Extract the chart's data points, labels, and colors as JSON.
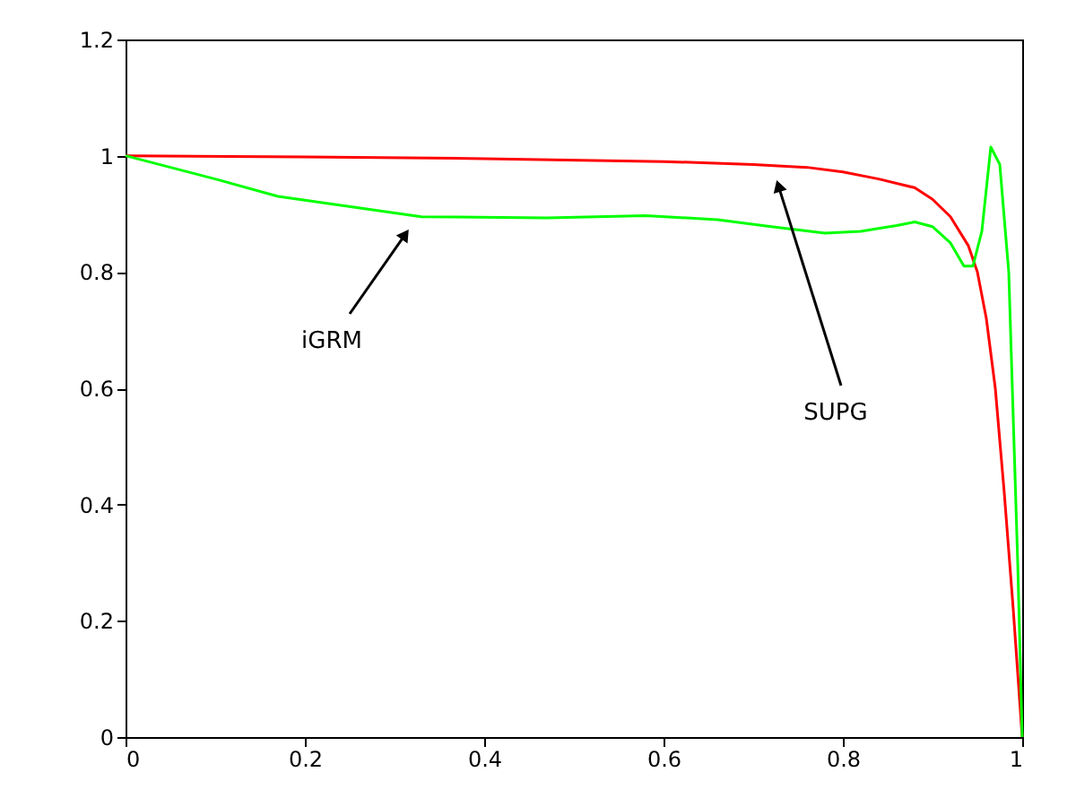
{
  "chart_data": {
    "type": "line",
    "xlim": [
      0,
      1
    ],
    "ylim": [
      0,
      1.2
    ],
    "xticks": [
      0,
      0.2,
      0.4,
      0.6,
      0.8,
      1
    ],
    "yticks": [
      0,
      0.2,
      0.4,
      0.6,
      0.8,
      1,
      1.2
    ],
    "grid": false,
    "line_style": "solid",
    "marker": "none",
    "series": [
      {
        "color": "#ff0000",
        "x": [
          0,
          0.2,
          0.4,
          0.6,
          0.7,
          0.76,
          0.8,
          0.84,
          0.88,
          0.9,
          0.92,
          0.94,
          0.95,
          0.96,
          0.97,
          0.98,
          0.99,
          1.0
        ],
        "values": [
          1.0,
          0.998,
          0.995,
          0.99,
          0.985,
          0.98,
          0.972,
          0.96,
          0.945,
          0.925,
          0.895,
          0.845,
          0.8,
          0.72,
          0.6,
          0.42,
          0.22,
          0.0
        ]
      },
      {
        "color": "#00ff00",
        "x": [
          0,
          0.1,
          0.17,
          0.33,
          0.47,
          0.58,
          0.66,
          0.72,
          0.78,
          0.82,
          0.86,
          0.88,
          0.9,
          0.92,
          0.935,
          0.945,
          0.955,
          0.965,
          0.975,
          0.985,
          0.995,
          1.0
        ],
        "values": [
          1.0,
          0.96,
          0.93,
          0.895,
          0.893,
          0.897,
          0.89,
          0.878,
          0.867,
          0.87,
          0.88,
          0.886,
          0.878,
          0.85,
          0.81,
          0.81,
          0.87,
          1.015,
          0.985,
          0.8,
          0.3,
          0.0
        ]
      }
    ],
    "annotations": [
      "iGRM",
      "SUPG"
    ]
  }
}
